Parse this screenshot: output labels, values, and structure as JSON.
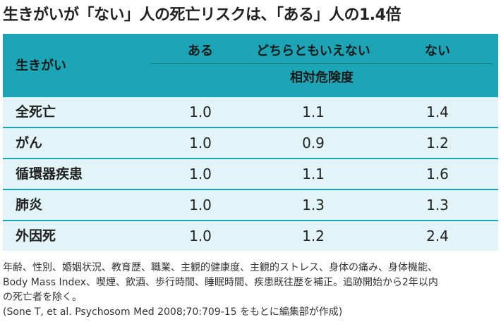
{
  "title": "生きがいが「ない」人の死亡リスクは、「ある」人の1.4倍",
  "table": {
    "row_header": "生きがい",
    "columns": [
      "ある",
      "どちらともいえない",
      "ない"
    ],
    "subheader": "相対危険度",
    "rows": [
      {
        "label": "全死亡",
        "values": [
          "1.0",
          "1.1",
          "1.4"
        ]
      },
      {
        "label": "がん",
        "values": [
          "1.0",
          "0.9",
          "1.2"
        ]
      },
      {
        "label": "循環器疾患",
        "values": [
          "1.0",
          "1.1",
          "1.6"
        ]
      },
      {
        "label": "肺炎",
        "values": [
          "1.0",
          "1.3",
          "1.3"
        ]
      },
      {
        "label": "外因死",
        "values": [
          "1.0",
          "1.2",
          "2.4"
        ]
      }
    ]
  },
  "notes": [
    "年齢、性別、婚姻状況、教育歴、職業、主観的健康度、主観的ストレス、身体の痛み、身体機能、",
    "Body Mass Index、喫煙、飲酒、歩行時間、睡眠時間、疾患既往歴を補正。追跡開始から2年以内",
    "の死亡者を除く。",
    "(Sone T, et al. Psychosom Med 2008;70:709-15 をもとに編集部が作成)"
  ],
  "colors": {
    "header": "#1ca5b6",
    "row_bg": "#e2f4f7",
    "divider": "#1ca5b6"
  }
}
